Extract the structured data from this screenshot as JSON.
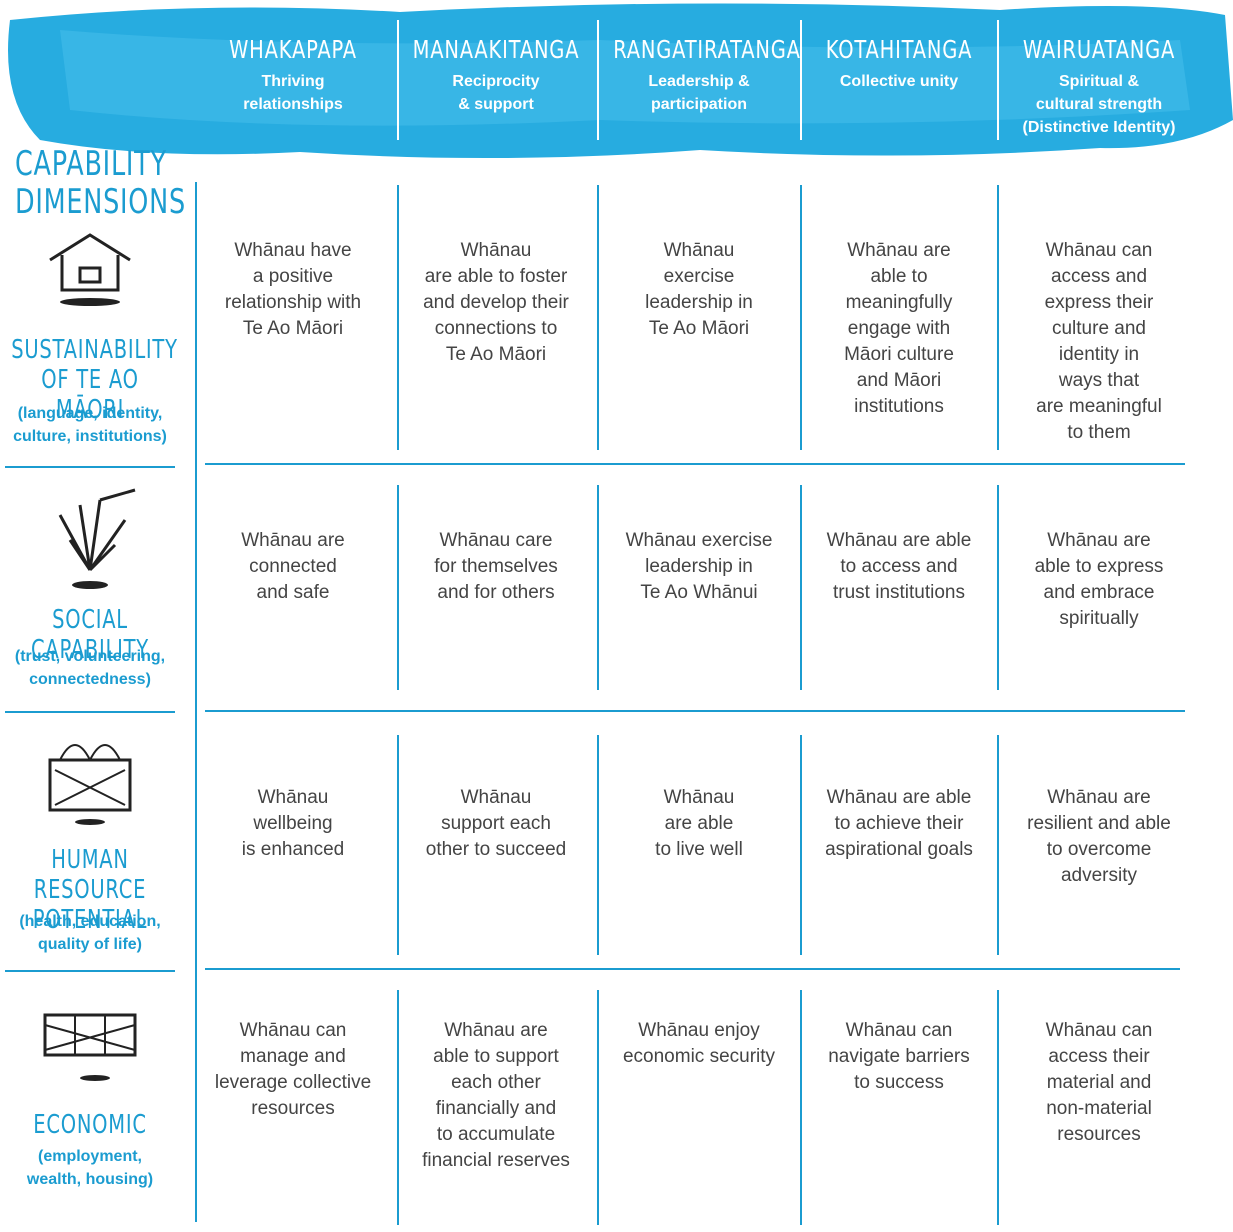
{
  "side_title": "CAPABILITY\nDIMENSIONS",
  "columns": [
    {
      "title": "WHAKAPAPA",
      "subtitle": "Thriving\nrelationships"
    },
    {
      "title": "MANAAKITANGA",
      "subtitle": "Reciprocity\n& support"
    },
    {
      "title": "RANGATIRATANGA",
      "subtitle": "Leadership &\nparticipation"
    },
    {
      "title": "KOTAHITANGA",
      "subtitle": "Collective unity"
    },
    {
      "title": "WAIRUATANGA",
      "subtitle": "Spiritual &\ncultural strength\n(Distinctive Identity)"
    }
  ],
  "rows": [
    {
      "title": "SUSTAINABILITY\nOF TE AO MĀORI",
      "subtitle": "(language, identity,\nculture, institutions)",
      "cells": [
        "Whānau have\na positive\nrelationship with\nTe Ao Māori",
        "Whānau\nare able to foster\nand develop their\nconnections to\nTe Ao Māori",
        "Whānau\nexercise\nleadership in\nTe Ao Māori",
        "Whānau are\nable to\nmeaningfully\nengage with\nMāori culture\nand Māori\ninstitutions",
        "Whānau can\naccess and\nexpress their\nculture and\nidentity in\nways that\nare meaningful\nto them"
      ]
    },
    {
      "title": "SOCIAL CAPABILITY",
      "subtitle": "(trust, volunteering,\nconnectedness)",
      "cells": [
        "Whānau are\nconnected\nand safe",
        "Whānau care\nfor themselves\nand for others",
        "Whānau exercise\nleadership in\nTe Ao Whānui",
        "Whānau are able\nto access and\ntrust institutions",
        "Whānau are\nable to express\nand embrace\nspiritually"
      ]
    },
    {
      "title": "HUMAN RESOURCE\nPOTENTIAL",
      "subtitle": "(health, education,\nquality of life)",
      "cells": [
        "Whānau\nwellbeing\nis enhanced",
        "Whānau\nsupport each\nother to succeed",
        "Whānau\nare able\nto live well",
        "Whānau are able\nto achieve their\naspirational goals",
        "Whānau are\nresilient and able\nto overcome\nadversity"
      ]
    },
    {
      "title": "ECONOMIC",
      "subtitle": "(employment,\nwealth, housing)",
      "cells": [
        "Whānau can\nmanage and\nleverage collective\nresources",
        "Whānau are\nable to support\neach other\nfinancially and\nto accumulate\nfinancial reserves",
        "Whānau enjoy\neconomic security",
        "Whānau can\nnavigate barriers\nto success",
        "Whānau can\naccess their\nmaterial and\nnon-material\nresources"
      ]
    }
  ]
}
